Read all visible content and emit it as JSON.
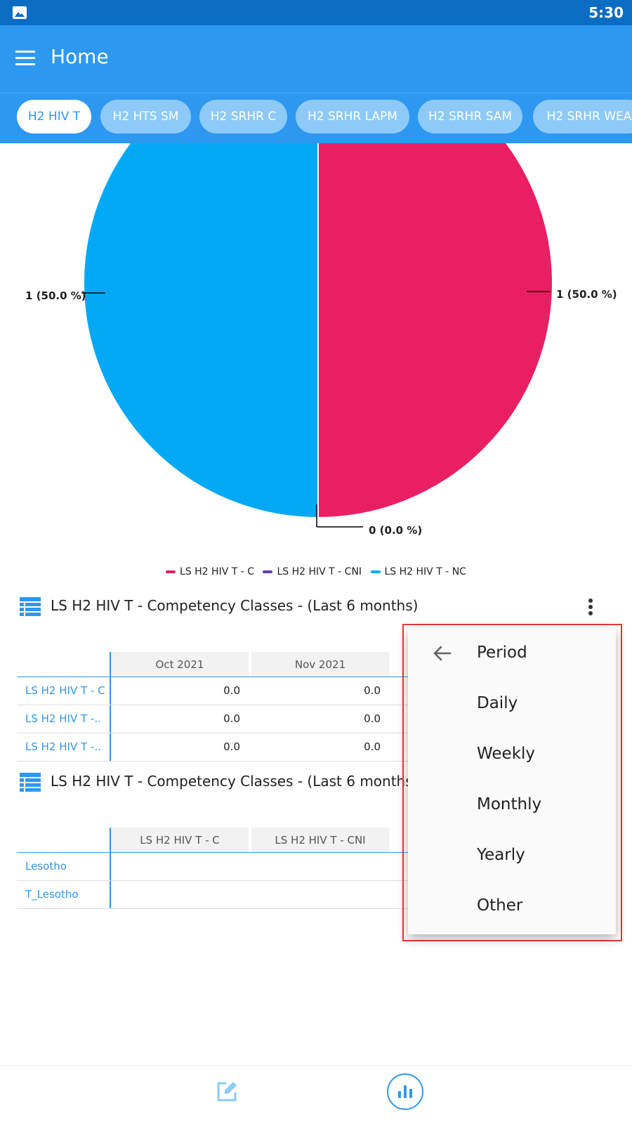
{
  "status_bar": {
    "time": "5:30",
    "icons": [
      "image-icon"
    ]
  },
  "app_bar": {
    "title": "Home",
    "menu_icon": "hamburger-icon"
  },
  "tabs": [
    {
      "label": "H2 HIV T",
      "active": true
    },
    {
      "label": "H2 HTS SM",
      "active": false
    },
    {
      "label": "H2 SRHR C",
      "active": false
    },
    {
      "label": "H2 SRHR LAPM",
      "active": false
    },
    {
      "label": "H2 SRHR SAM",
      "active": false
    },
    {
      "label": "H2 SRHR WEA",
      "active": false
    }
  ],
  "chart_data": {
    "type": "pie",
    "slices": [
      {
        "name": "LS H2 HIV T - C",
        "value": 1,
        "percent": 50.0,
        "color": "#e91e63"
      },
      {
        "name": "LS H2 HIV T - CNI",
        "value": 0,
        "percent": 0.0,
        "color": "#673ab7"
      },
      {
        "name": "LS H2 HIV T - NC",
        "value": 1,
        "percent": 50.0,
        "color": "#03a9f4"
      }
    ],
    "labels": {
      "left": "1 (50.0 %)",
      "right": "1 (50.0 %)",
      "bottom": "0 (0.0 %)"
    },
    "legend_position": "bottom"
  },
  "legend": {
    "items": [
      {
        "label": "LS H2 HIV T - C",
        "color": "#e91e63"
      },
      {
        "label": "LS H2 HIV T - CNI",
        "color": "#673ab7"
      },
      {
        "label": "LS H2 HIV T - NC",
        "color": "#03a9f4"
      }
    ]
  },
  "table1": {
    "title": "LS H2 HIV T - Competency Classes - (Last 6 months)",
    "columns": [
      "Oct 2021",
      "Nov 2021"
    ],
    "rows": [
      {
        "label": "LS H2 HIV T - C",
        "values": [
          "0.0",
          "0.0"
        ]
      },
      {
        "label": "LS H2 HIV T -..",
        "values": [
          "0.0",
          "0.0"
        ]
      },
      {
        "label": "LS H2 HIV T -..",
        "values": [
          "0.0",
          "0.0"
        ]
      }
    ]
  },
  "table2": {
    "title": "LS H2 HIV T - Competency Classes - (Last 6 months",
    "columns": [
      "LS H2 HIV T - C",
      "LS H2 HIV T - CNI"
    ],
    "rows": [
      {
        "label": "Lesotho"
      },
      {
        "label": "T_Lesotho"
      }
    ]
  },
  "period_menu": {
    "header": "Period",
    "items": [
      "Daily",
      "Weekly",
      "Monthly",
      "Yearly",
      "Other"
    ]
  },
  "colors": {
    "primary": "#2d98f0",
    "status_bar": "#0a6dc2",
    "highlight": "#e53935"
  }
}
